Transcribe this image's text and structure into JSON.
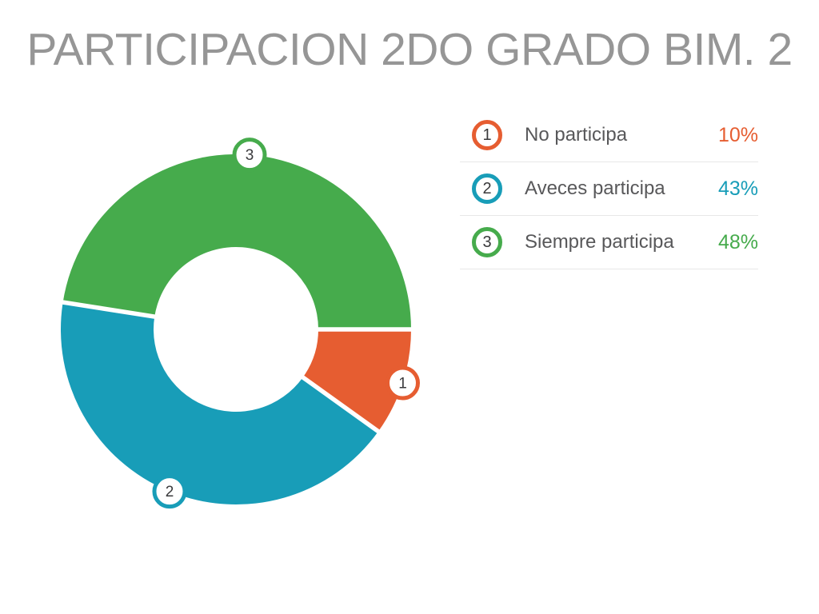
{
  "title": "PARTICIPACION 2DO GRADO BIM. 2",
  "chart_data": {
    "type": "pie",
    "variant": "donut",
    "title": "PARTICIPACION 2DO GRADO BIM. 2",
    "categories": [
      "No participa",
      "Aveces participa",
      "Siempre participa"
    ],
    "values": [
      10,
      43,
      48
    ],
    "value_unit": "percent",
    "displayed_values": [
      "10%",
      "43%",
      "48%"
    ],
    "slice_numbers": [
      "1",
      "2",
      "3"
    ],
    "colors": [
      "#e65d31",
      "#189db8",
      "#46ab4c"
    ],
    "start_angle_deg": 0,
    "direction": "clockwise",
    "inner_radius_ratio": 0.47,
    "slice_gap_color": "#ffffff",
    "marker_fill": "#ffffff",
    "marker_number_color": "#3a3a3c",
    "legend_position": "right",
    "background": "#ffffff"
  },
  "legend": {
    "items": [
      {
        "num": "1",
        "label": "No participa",
        "value": "10%",
        "color": "#e65d31"
      },
      {
        "num": "2",
        "label": "Aveces participa",
        "value": "43%",
        "color": "#189db8"
      },
      {
        "num": "3",
        "label": "Siempre participa",
        "value": "48%",
        "color": "#46ab4c"
      }
    ]
  }
}
